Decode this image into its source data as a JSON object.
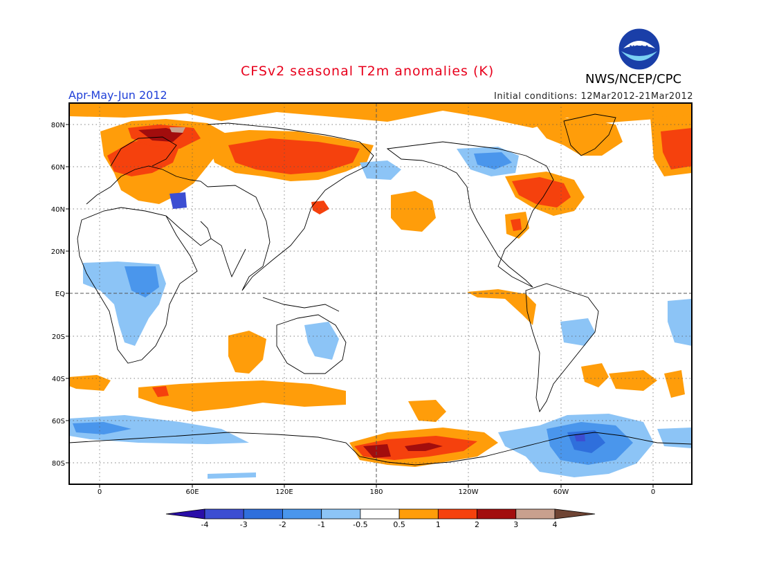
{
  "header": {
    "title": "CFSv2 seasonal T2m anomalies (K)",
    "agency": "NWS/NCEP/CPC",
    "season": "Apr-May-Jun 2012",
    "initial_conditions": "Initial conditions: 12Mar2012-21Mar2012",
    "logo_text": "NOAA"
  },
  "map": {
    "lon_ticks": [
      "0",
      "60E",
      "120E",
      "180",
      "120W",
      "60W",
      "0"
    ],
    "lat_ticks": [
      "80N",
      "60N",
      "40N",
      "20N",
      "EQ",
      "20S",
      "40S",
      "60S",
      "80S"
    ]
  },
  "colorbar": {
    "labels": [
      "-4",
      "-3",
      "-2",
      "-1",
      "-0.5",
      "0.5",
      "1",
      "2",
      "3",
      "4"
    ],
    "colors": [
      "#2a0ea8",
      "#3c4ed2",
      "#2f6fdc",
      "#4a96ec",
      "#8cc4f6",
      "#ffffff",
      "#ff9d0a",
      "#f5410d",
      "#a20d0d",
      "#c8a08e",
      "#6f4434"
    ]
  },
  "colors": {
    "title": "#e8001c",
    "season": "#1f3fd8",
    "warm_1": "#ff9d0a",
    "warm_2": "#f5410d",
    "warm_3": "#a20d0d",
    "warm_4": "#c8a08e",
    "cool_1": "#8cc4f6",
    "cool_2": "#4a96ec",
    "cool_3": "#2f6fdc",
    "cool_4": "#3c4ed2"
  }
}
